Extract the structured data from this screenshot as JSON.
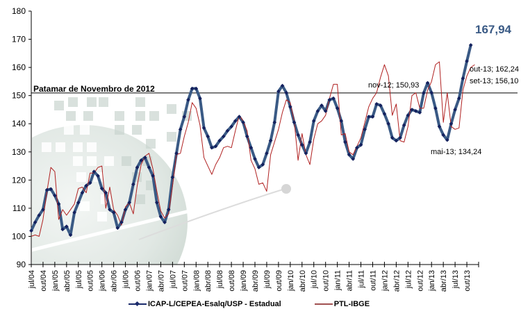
{
  "chart_data": {
    "type": "line",
    "title": "",
    "xlabel": "",
    "ylabel": "",
    "ylim": [
      90,
      180
    ],
    "yticks": [
      "90",
      "100",
      "110",
      "120",
      "130",
      "140",
      "150",
      "160",
      "170",
      "180"
    ],
    "xtick_labels": [
      "jul/04",
      "out/04",
      "jan/05",
      "abr/05",
      "jul/05",
      "out/05",
      "jan/06",
      "abr/06",
      "jul/06",
      "out/06",
      "jan/07",
      "abr/07",
      "jul/07",
      "out/07",
      "jan/08",
      "abr/08",
      "jul/08",
      "out/08",
      "jan/09",
      "abr/09",
      "jul/09",
      "out/09",
      "jan/10",
      "abr/10",
      "jul/10",
      "out/10",
      "jan/11",
      "abr/11",
      "jul/11",
      "out/11",
      "jan/12",
      "abr/12",
      "jul/12",
      "out/12",
      "jan/13",
      "abr/13",
      "jul/13",
      "out/13"
    ],
    "grid": false,
    "legend_position": "bottom",
    "reference_line": {
      "value": 150.93,
      "label": "Patamar de Novembro de 2012"
    },
    "series": [
      {
        "name": "ICAP-L/CEPEA-Esalq/USP - Estadual",
        "color": "#3a5a85",
        "marker_color": "#14215e",
        "start": "jul/04",
        "values": [
          102,
          105,
          107.5,
          109.5,
          116.5,
          116.8,
          114.5,
          111.5,
          102.5,
          103.5,
          100.5,
          108.5,
          112,
          115.5,
          118,
          119,
          123,
          121.5,
          117,
          115.5,
          109.5,
          108.5,
          103,
          105,
          109.5,
          112,
          118.5,
          124.5,
          127,
          128,
          124.5,
          121.5,
          112,
          107,
          105,
          109.5,
          121,
          129.5,
          138,
          142.5,
          148.5,
          152.5,
          152.5,
          149,
          138.5,
          135.5,
          131.5,
          132,
          134,
          135.5,
          137.5,
          139,
          141,
          142.5,
          140.5,
          135.5,
          131.5,
          127.5,
          124.5,
          125.5,
          129.5,
          134,
          140.5,
          151.5,
          153.5,
          151,
          146,
          140.5,
          136,
          132.5,
          129.5,
          133.5,
          141,
          144.5,
          146.5,
          144.5,
          148.5,
          149,
          145.5,
          141,
          133.5,
          129,
          127.5,
          131.5,
          132.5,
          138,
          142.5,
          142.5,
          147,
          146.5,
          143.5,
          140,
          135,
          134,
          135,
          139.5,
          143,
          145,
          144.5,
          144,
          150.93,
          154.5,
          151,
          145.5,
          139,
          136,
          134.24,
          140,
          145,
          149,
          156.1,
          162.24,
          167.94
        ]
      },
      {
        "name": "PTL-IBGE",
        "color": "#b02020",
        "start": "jul/04",
        "values": [
          100,
          100.5,
          100,
          106,
          116,
          124.5,
          123,
          106,
          109.5,
          107.5,
          109.5,
          111.5,
          117,
          117.5,
          115.5,
          122.5,
          122.5,
          124.5,
          125,
          110,
          117.5,
          109.5,
          107.5,
          104,
          110.5,
          112,
          108,
          118,
          125.5,
          128.5,
          129.5,
          124,
          116,
          109,
          106.5,
          108,
          118,
          129,
          129.5,
          135.5,
          140.5,
          147.5,
          145.5,
          139.5,
          128,
          125,
          122,
          125.5,
          128,
          131.5,
          132,
          131.5,
          137.5,
          143,
          141,
          137.5,
          127,
          124,
          118.5,
          119,
          116,
          129,
          133.5,
          138,
          144,
          148.5,
          147.5,
          141,
          127,
          136.5,
          129,
          125.5,
          134.5,
          140,
          141,
          143,
          149,
          154,
          154,
          136,
          136.5,
          130,
          129,
          132,
          135,
          140.5,
          146,
          149,
          151,
          156.5,
          161,
          157,
          143,
          147,
          134,
          133.5,
          139,
          150,
          151,
          145.5,
          145.5,
          152,
          155,
          161,
          162,
          140.5,
          151,
          139,
          138,
          138.5,
          152,
          157,
          160,
          161
        ]
      }
    ],
    "annotations": [
      {
        "text": "167,94",
        "point": "nov/13",
        "value": 167.94
      },
      {
        "text": "out-13; 162,24",
        "point": "out/13",
        "value": 162.24
      },
      {
        "text": "set-13; 156,10",
        "point": "set/13",
        "value": 156.1
      },
      {
        "text": "nov-12; 150,93",
        "point": "nov/12",
        "value": 150.93
      },
      {
        "text": "mai-13; 134,24",
        "point": "mai/13",
        "value": 134.24
      }
    ]
  },
  "legend": {
    "items": [
      {
        "label": "ICAP-L/CEPEA-Esalq/USP - Estadual",
        "color": "#1a2a6b"
      },
      {
        "label": "PTL-IBGE",
        "color": "#a05050"
      }
    ]
  }
}
